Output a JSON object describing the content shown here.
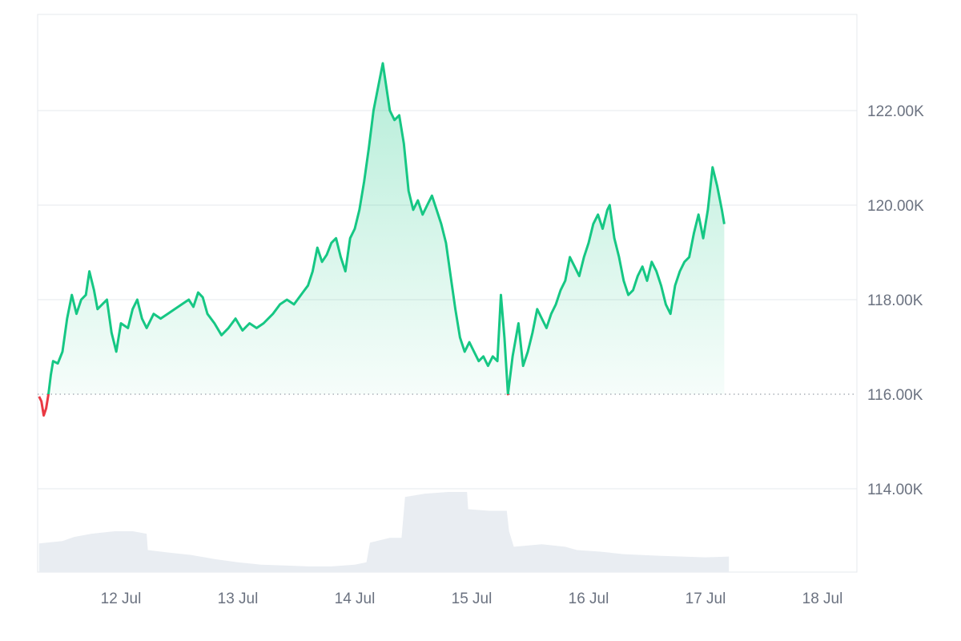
{
  "chart_data": {
    "type": "line",
    "title": "",
    "xlabel": "",
    "ylabel": "",
    "x_tick_labels": [
      "12 Jul",
      "13 Jul",
      "14 Jul",
      "15 Jul",
      "16 Jul",
      "17 Jul",
      "18 Jul"
    ],
    "x_range_days": [
      11.3,
      18.35
    ],
    "ylim": [
      113400,
      124000
    ],
    "y_ticks": [
      {
        "value": 114000,
        "label": "114.00K"
      },
      {
        "value": 116000,
        "label": "116.00K"
      },
      {
        "value": 118000,
        "label": "118.00K"
      },
      {
        "value": 120000,
        "label": "120.00K"
      },
      {
        "value": 122000,
        "label": "122.00K"
      }
    ],
    "baseline": 116000,
    "grid": true,
    "colors": {
      "up": "#16c784",
      "down": "#ea3943",
      "area_top": "#16c784",
      "volume": "#e9edf2",
      "grid": "#e6e8ec",
      "axis_text": "#6b7280"
    },
    "series": [
      {
        "points": [
          [
            11.3,
            115950
          ],
          [
            11.32,
            115850
          ],
          [
            11.34,
            115550
          ],
          [
            11.36,
            115700
          ],
          [
            11.38,
            116000
          ],
          [
            11.4,
            116400
          ],
          [
            11.42,
            116700
          ],
          [
            11.46,
            116650
          ],
          [
            11.5,
            116900
          ],
          [
            11.54,
            117600
          ],
          [
            11.58,
            118100
          ],
          [
            11.62,
            117700
          ],
          [
            11.66,
            118000
          ],
          [
            11.7,
            118100
          ],
          [
            11.73,
            118600
          ],
          [
            11.77,
            118200
          ],
          [
            11.8,
            117800
          ],
          [
            11.84,
            117900
          ],
          [
            11.88,
            118000
          ],
          [
            11.92,
            117300
          ],
          [
            11.96,
            116900
          ],
          [
            12.0,
            117500
          ],
          [
            12.06,
            117400
          ],
          [
            12.1,
            117800
          ],
          [
            12.14,
            118000
          ],
          [
            12.18,
            117600
          ],
          [
            12.22,
            117400
          ],
          [
            12.28,
            117700
          ],
          [
            12.34,
            117600
          ],
          [
            12.4,
            117700
          ],
          [
            12.46,
            117800
          ],
          [
            12.52,
            117900
          ],
          [
            12.58,
            118000
          ],
          [
            12.62,
            117850
          ],
          [
            12.66,
            118150
          ],
          [
            12.7,
            118050
          ],
          [
            12.74,
            117700
          ],
          [
            12.8,
            117500
          ],
          [
            12.86,
            117250
          ],
          [
            12.92,
            117400
          ],
          [
            12.98,
            117600
          ],
          [
            13.04,
            117350
          ],
          [
            13.1,
            117500
          ],
          [
            13.16,
            117400
          ],
          [
            13.22,
            117500
          ],
          [
            13.3,
            117700
          ],
          [
            13.36,
            117900
          ],
          [
            13.42,
            118000
          ],
          [
            13.48,
            117900
          ],
          [
            13.54,
            118100
          ],
          [
            13.6,
            118300
          ],
          [
            13.64,
            118600
          ],
          [
            13.68,
            119100
          ],
          [
            13.72,
            118800
          ],
          [
            13.76,
            118950
          ],
          [
            13.8,
            119200
          ],
          [
            13.84,
            119300
          ],
          [
            13.88,
            118900
          ],
          [
            13.92,
            118600
          ],
          [
            13.96,
            119300
          ],
          [
            14.0,
            119500
          ],
          [
            14.04,
            119900
          ],
          [
            14.08,
            120500
          ],
          [
            14.12,
            121200
          ],
          [
            14.16,
            122000
          ],
          [
            14.2,
            122500
          ],
          [
            14.24,
            123000
          ],
          [
            14.27,
            122500
          ],
          [
            14.3,
            122000
          ],
          [
            14.34,
            121800
          ],
          [
            14.38,
            121900
          ],
          [
            14.42,
            121300
          ],
          [
            14.46,
            120300
          ],
          [
            14.5,
            119900
          ],
          [
            14.54,
            120100
          ],
          [
            14.58,
            119800
          ],
          [
            14.62,
            120000
          ],
          [
            14.66,
            120200
          ],
          [
            14.7,
            119900
          ],
          [
            14.74,
            119600
          ],
          [
            14.78,
            119200
          ],
          [
            14.82,
            118500
          ],
          [
            14.86,
            117800
          ],
          [
            14.9,
            117200
          ],
          [
            14.94,
            116900
          ],
          [
            14.98,
            117100
          ],
          [
            15.02,
            116900
          ],
          [
            15.06,
            116700
          ],
          [
            15.1,
            116800
          ],
          [
            15.14,
            116600
          ],
          [
            15.18,
            116800
          ],
          [
            15.22,
            116700
          ],
          [
            15.25,
            118100
          ],
          [
            15.28,
            117200
          ],
          [
            15.31,
            116000
          ],
          [
            15.35,
            116800
          ],
          [
            15.4,
            117500
          ],
          [
            15.44,
            116600
          ],
          [
            15.48,
            116900
          ],
          [
            15.52,
            117300
          ],
          [
            15.56,
            117800
          ],
          [
            15.6,
            117600
          ],
          [
            15.64,
            117400
          ],
          [
            15.68,
            117700
          ],
          [
            15.72,
            117900
          ],
          [
            15.76,
            118200
          ],
          [
            15.8,
            118400
          ],
          [
            15.84,
            118900
          ],
          [
            15.88,
            118700
          ],
          [
            15.92,
            118500
          ],
          [
            15.96,
            118900
          ],
          [
            16.0,
            119200
          ],
          [
            16.04,
            119600
          ],
          [
            16.08,
            119800
          ],
          [
            16.12,
            119500
          ],
          [
            16.16,
            119900
          ],
          [
            16.18,
            120000
          ],
          [
            16.22,
            119300
          ],
          [
            16.26,
            118900
          ],
          [
            16.3,
            118400
          ],
          [
            16.34,
            118100
          ],
          [
            16.38,
            118200
          ],
          [
            16.42,
            118500
          ],
          [
            16.46,
            118700
          ],
          [
            16.5,
            118400
          ],
          [
            16.54,
            118800
          ],
          [
            16.58,
            118600
          ],
          [
            16.62,
            118300
          ],
          [
            16.66,
            117900
          ],
          [
            16.7,
            117700
          ],
          [
            16.74,
            118300
          ],
          [
            16.78,
            118600
          ],
          [
            16.82,
            118800
          ],
          [
            16.86,
            118900
          ],
          [
            16.9,
            119400
          ],
          [
            16.94,
            119800
          ],
          [
            16.98,
            119300
          ],
          [
            17.02,
            119900
          ],
          [
            17.06,
            120800
          ],
          [
            17.1,
            120400
          ],
          [
            17.14,
            119900
          ],
          [
            17.16,
            119600
          ]
        ]
      }
    ],
    "volume": {
      "points": [
        [
          11.3,
          0.35
        ],
        [
          11.5,
          0.38
        ],
        [
          11.6,
          0.43
        ],
        [
          11.75,
          0.47
        ],
        [
          11.95,
          0.5
        ],
        [
          12.1,
          0.5
        ],
        [
          12.22,
          0.47
        ],
        [
          12.23,
          0.27
        ],
        [
          12.4,
          0.24
        ],
        [
          12.6,
          0.21
        ],
        [
          12.8,
          0.16
        ],
        [
          13.0,
          0.12
        ],
        [
          13.2,
          0.09
        ],
        [
          13.4,
          0.08
        ],
        [
          13.6,
          0.07
        ],
        [
          13.8,
          0.07
        ],
        [
          14.0,
          0.09
        ],
        [
          14.1,
          0.12
        ],
        [
          14.13,
          0.36
        ],
        [
          14.3,
          0.42
        ],
        [
          14.4,
          0.42
        ],
        [
          14.43,
          0.92
        ],
        [
          14.6,
          0.96
        ],
        [
          14.8,
          0.98
        ],
        [
          14.96,
          0.98
        ],
        [
          14.97,
          0.77
        ],
        [
          15.15,
          0.75
        ],
        [
          15.3,
          0.75
        ],
        [
          15.32,
          0.5
        ],
        [
          15.36,
          0.31
        ],
        [
          15.6,
          0.34
        ],
        [
          15.8,
          0.31
        ],
        [
          15.9,
          0.27
        ],
        [
          16.1,
          0.25
        ],
        [
          16.3,
          0.22
        ],
        [
          16.6,
          0.2
        ],
        [
          17.0,
          0.18
        ],
        [
          17.2,
          0.19
        ]
      ]
    }
  }
}
